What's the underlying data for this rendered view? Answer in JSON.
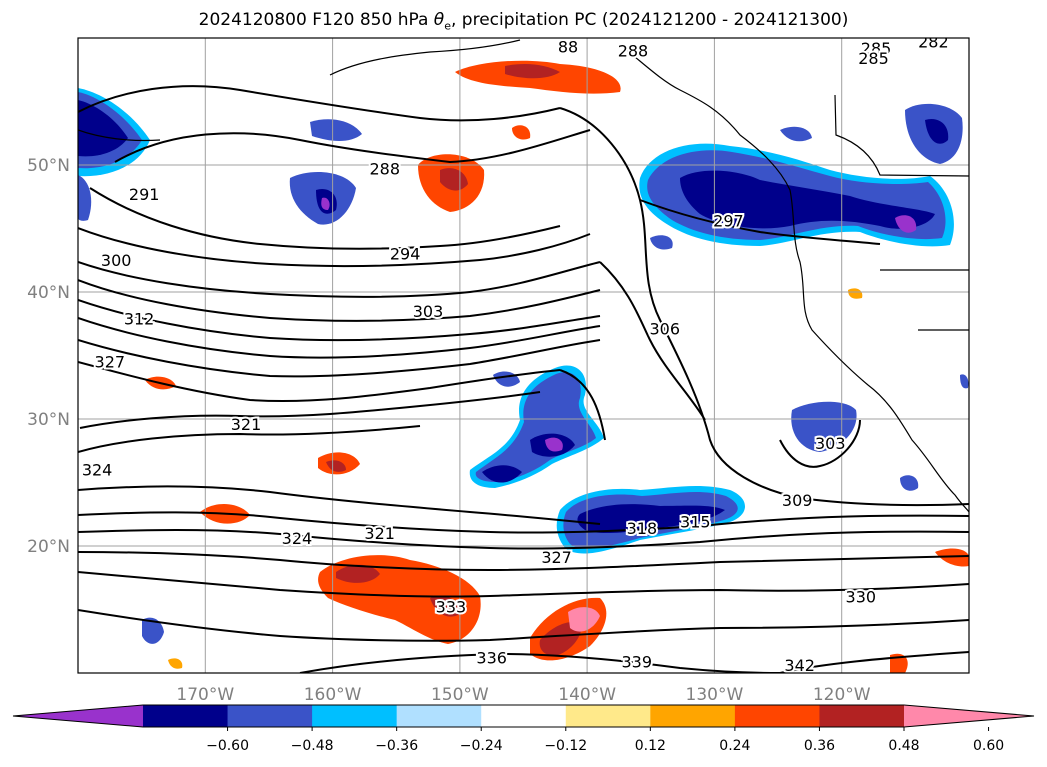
{
  "title": {
    "prefix": "2024120800 F120 850 hPa ",
    "theta": "θ",
    "theta_sub": "e",
    "suffix": ", precipitation PC (2024121200 - 2024121300)"
  },
  "map": {
    "lon_range": [
      -180,
      -110
    ],
    "lat_range": [
      10,
      60
    ],
    "gridlines": true,
    "lon_ticks": [
      {
        "value": -170,
        "label": "170°W"
      },
      {
        "value": -160,
        "label": "160°W"
      },
      {
        "value": -150,
        "label": "150°W"
      },
      {
        "value": -140,
        "label": "140°W"
      },
      {
        "value": -130,
        "label": "130°W"
      },
      {
        "value": -120,
        "label": "120°W"
      }
    ],
    "lat_ticks": [
      {
        "value": 20,
        "label": "20°N"
      },
      {
        "value": 30,
        "label": "30°N"
      },
      {
        "value": 40,
        "label": "40°N"
      },
      {
        "value": 50,
        "label": "50°N"
      }
    ],
    "contour_labels": [
      {
        "text": "282",
        "lon": -112.8,
        "lat": 59.6
      },
      {
        "text": "285",
        "lon": -117.3,
        "lat": 59.1
      },
      {
        "text": "285",
        "lon": -117.5,
        "lat": 58.3
      },
      {
        "text": "288",
        "lon": -136.4,
        "lat": 58.9
      },
      {
        "text": "88",
        "lon": -141.5,
        "lat": 59.2
      },
      {
        "text": "288",
        "lon": -155.9,
        "lat": 49.6
      },
      {
        "text": "291",
        "lon": -174.8,
        "lat": 47.6
      },
      {
        "text": "294",
        "lon": -154.3,
        "lat": 42.9
      },
      {
        "text": "297",
        "lon": -128.9,
        "lat": 45.5
      },
      {
        "text": "300",
        "lon": -177.0,
        "lat": 42.4
      },
      {
        "text": "303",
        "lon": -152.5,
        "lat": 38.4
      },
      {
        "text": "306",
        "lon": -133.9,
        "lat": 37.0
      },
      {
        "text": "312",
        "lon": -175.2,
        "lat": 37.8
      },
      {
        "text": "327",
        "lon": -177.5,
        "lat": 34.4
      },
      {
        "text": "321",
        "lon": -166.8,
        "lat": 29.5
      },
      {
        "text": "324",
        "lon": -178.5,
        "lat": 25.9
      },
      {
        "text": "303",
        "lon": -120.9,
        "lat": 28.0
      },
      {
        "text": "309",
        "lon": -123.5,
        "lat": 23.5
      },
      {
        "text": "318",
        "lon": -135.7,
        "lat": 21.3
      },
      {
        "text": "315",
        "lon": -131.5,
        "lat": 21.8
      },
      {
        "text": "321",
        "lon": -156.3,
        "lat": 20.9
      },
      {
        "text": "324",
        "lon": -162.8,
        "lat": 20.5
      },
      {
        "text": "327",
        "lon": -142.4,
        "lat": 19.0
      },
      {
        "text": "333",
        "lon": -150.7,
        "lat": 15.1
      },
      {
        "text": "330",
        "lon": -118.5,
        "lat": 15.9
      },
      {
        "text": "336",
        "lon": -147.5,
        "lat": 11.1
      },
      {
        "text": "339",
        "lon": -136.1,
        "lat": 10.8
      },
      {
        "text": "342",
        "lon": -123.3,
        "lat": 10.5
      }
    ]
  },
  "colorbar": {
    "tick_labels": [
      "−0.60",
      "−0.48",
      "−0.36",
      "−0.24",
      "−0.12",
      "0.12",
      "0.24",
      "0.36",
      "0.48",
      "0.60"
    ],
    "colors": [
      "#9932cc",
      "#00008b",
      "#3a53c8",
      "#00bfff",
      "#b0e0ff",
      "#ffffff",
      "#ffe98a",
      "#ffa500",
      "#ff4500",
      "#b22222",
      "#ff88aa"
    ],
    "extend": "both"
  },
  "colors": {
    "land": "#ffffff",
    "ocean": "#ffffff",
    "contour": "#000000",
    "grid": "#a0a0a0",
    "tick_text": "#808080"
  }
}
